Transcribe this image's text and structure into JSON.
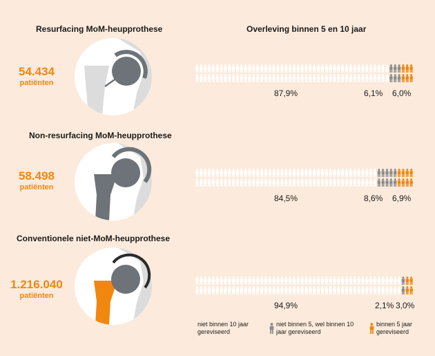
{
  "left_title": "Resurfacing MoM-heupprothese",
  "right_title": "Overleving binnen 5 en 10 jaar",
  "groups": [
    {
      "title": "Non-resurfacing MoM-heupprothese"
    },
    {
      "title": "Conventionele niet-MoM-heupprothese"
    }
  ],
  "colors": {
    "white": "#ffffff",
    "grey": "#8c8c8c",
    "orange": "#f0870f",
    "implant": "#6d7378",
    "bone": "#dcdcdc",
    "background": "#fcebdc"
  },
  "chart_data": {
    "type": "pictogram",
    "series_labels": [
      "niet binnen 10 jaar gereviseerd",
      "niet binnen 5, wel binnen 10 jaar gereviseerd",
      "binnen 5 jaar gereviseerd"
    ],
    "rows": [
      {
        "category": "Resurfacing MoM-heupprothese",
        "patients": "54.434",
        "patients_label": "patiënten",
        "values": [
          87.9,
          6.1,
          6.0
        ],
        "labels": [
          "87,9%",
          "6,1%",
          "6,0%"
        ]
      },
      {
        "category": "Non-resurfacing MoM-heupprothese",
        "patients": "58.498",
        "patients_label": "patiënten",
        "values": [
          84.5,
          8.6,
          6.9
        ],
        "labels": [
          "84,5%",
          "8,6%",
          "6,9%"
        ]
      },
      {
        "category": "Conventionele niet-MoM-heupprothese",
        "patients": "1.216.040",
        "patients_label": "patiënten",
        "values": [
          94.9,
          2.1,
          3.0
        ],
        "labels": [
          "94,9%",
          "2,1%",
          "3,0%"
        ]
      }
    ]
  },
  "legend": [
    {
      "text": "niet binnen 10 jaar gereviseerd"
    },
    {
      "text": "niet binnen 5, wel binnen 10 jaar gereviseerd"
    },
    {
      "text": "binnen 5 jaar gereviseerd"
    }
  ]
}
